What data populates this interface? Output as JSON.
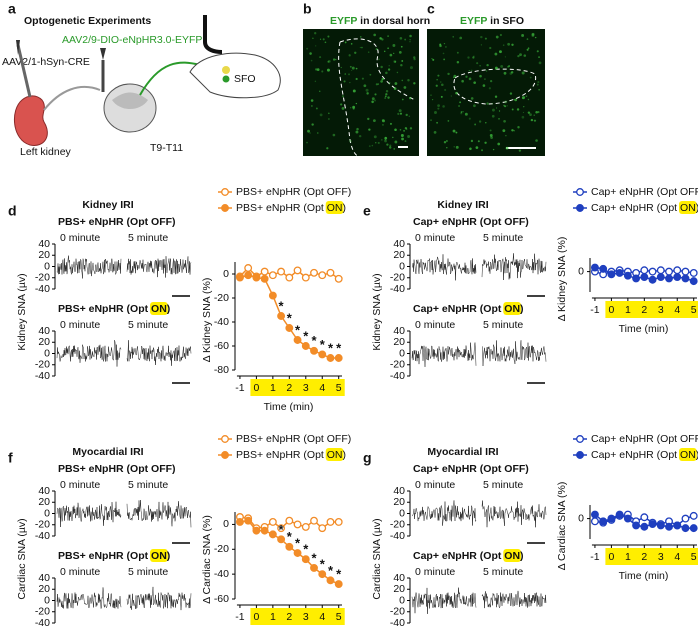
{
  "panel_a": {
    "label": "a",
    "title": "Optogenetic Experiments",
    "virus_spinal": "AAV2/9-DIO-eNpHR3.0-EYFP",
    "virus_kidney": "AAV2/1-hSyn-CRE",
    "kidney": "Left kidney",
    "segment": "T9-T11",
    "brain_region": "SFO"
  },
  "panel_b": {
    "label": "b",
    "title_highlight": "EYFP",
    "title": "in dorsal horn"
  },
  "panel_c": {
    "label": "c",
    "title_highlight": "EYFP",
    "title": "in SFO"
  },
  "chart_data": [
    {
      "type": "line",
      "panel": "d",
      "header": "Kidney IRI",
      "highlight": "ON",
      "trace_titles": [
        "PBS+ eNpHR (Opt OFF)",
        "PBS+ eNpHR (Opt ON)"
      ],
      "trace_times": [
        "0 minute",
        "5 minute"
      ],
      "trace_ylabel": "Kidney SNA (µv)",
      "trace_yticks": [
        40,
        20,
        0,
        -20,
        -40
      ],
      "ylabel": "Δ Kidney SNA (%)",
      "xlabel": "Time (min)",
      "x": [
        -1,
        -0.5,
        0,
        0.5,
        1,
        1.5,
        2,
        2.5,
        3,
        3.5,
        4,
        4.5,
        5
      ],
      "xlim": [
        -1.3,
        5.2
      ],
      "xticks": [
        -1,
        0,
        1,
        2,
        3,
        4,
        5
      ],
      "ylim": [
        -80,
        10
      ],
      "yticks": [
        0,
        -20,
        -40,
        -60,
        -80
      ],
      "light_on": [
        0,
        5
      ],
      "series": [
        {
          "name": "PBS+ eNpHR (Opt OFF)",
          "color": "#f28c28",
          "filled": false,
          "values": [
            -2,
            5,
            -2,
            2,
            -1,
            2,
            -3,
            3,
            -3,
            1,
            -1,
            1,
            -4
          ]
        },
        {
          "name": "PBS+ eNpHR (Opt ON)",
          "color": "#f28c28",
          "filled": true,
          "values": [
            -3,
            -1,
            -3,
            -4,
            -18,
            -35,
            -45,
            -55,
            -60,
            -64,
            -67,
            -70,
            -70
          ]
        }
      ],
      "annotations": [
        {
          "text": "*",
          "x": 1.5
        },
        {
          "text": "*",
          "x": 2
        },
        {
          "text": "*",
          "x": 2.5
        },
        {
          "text": "*",
          "x": 3
        },
        {
          "text": "*",
          "x": 3.5
        },
        {
          "text": "*",
          "x": 4
        },
        {
          "text": "*",
          "x": 4.5
        },
        {
          "text": "*",
          "x": 5
        }
      ]
    },
    {
      "type": "line",
      "panel": "e",
      "header": "Kidney IRI",
      "highlight": "ON",
      "trace_titles": [
        "Cap+ eNpHR (Opt OFF)",
        "Cap+ eNpHR (Opt ON)"
      ],
      "trace_times": [
        "0 minute",
        "5 minute"
      ],
      "trace_ylabel": "Kidney SNA (µv)",
      "trace_yticks": [
        40,
        20,
        0,
        -20,
        -40
      ],
      "ylabel": "Δ Kidney SNA (%)",
      "xlabel": "Time (min)",
      "x": [
        -1,
        -0.5,
        0,
        0.5,
        1,
        1.5,
        2,
        2.5,
        3,
        3.5,
        4,
        4.5,
        5
      ],
      "xlim": [
        -1.3,
        5.2
      ],
      "xticks": [
        -1,
        0,
        1,
        2,
        3,
        4,
        5
      ],
      "ylim": [
        -15,
        10
      ],
      "yticks": [
        0
      ],
      "light_on": [
        0,
        5
      ],
      "series": [
        {
          "name": "Cap+ eNpHR (Opt OFF)",
          "color": "#1f3fbf",
          "filled": false,
          "values": [
            0,
            -2,
            0,
            1,
            0,
            -1,
            1,
            0,
            1,
            0,
            1,
            0,
            -1
          ]
        },
        {
          "name": "Cap+ eNpHR (Opt ON)",
          "color": "#1f3fbf",
          "filled": true,
          "values": [
            3,
            2,
            -2,
            -1,
            -3,
            -5,
            -4,
            -6,
            -4,
            -5,
            -4,
            -5,
            -7
          ]
        }
      ],
      "annotations": []
    },
    {
      "type": "line",
      "panel": "f",
      "header": "Myocardial IRI",
      "highlight": "ON",
      "trace_titles": [
        "PBS+ eNpHR (Opt OFF)",
        "PBS+ eNpHR (Opt ON)"
      ],
      "trace_times": [
        "0 minute",
        "5 minute"
      ],
      "trace_ylabel": "Cardiac SNA (µv)",
      "trace_yticks": [
        40,
        20,
        0,
        -20,
        -40
      ],
      "ylabel": "Δ Cardiac SNA (%)",
      "xlabel": "Time (min)",
      "x": [
        -1,
        -0.5,
        0,
        0.5,
        1,
        1.5,
        2,
        2.5,
        3,
        3.5,
        4,
        4.5,
        5
      ],
      "xlim": [
        -1.3,
        5.2
      ],
      "xticks": [
        -1,
        0,
        1,
        2,
        3,
        4,
        5
      ],
      "ylim": [
        -60,
        10
      ],
      "yticks": [
        0,
        -20,
        -40,
        -60
      ],
      "light_on": [
        0,
        5
      ],
      "series": [
        {
          "name": "PBS+ eNpHR (Opt OFF)",
          "color": "#f28c28",
          "filled": false,
          "values": [
            6,
            5,
            -3,
            -2,
            2,
            -3,
            3,
            0,
            -2,
            3,
            -3,
            2,
            2
          ]
        },
        {
          "name": "PBS+ eNpHR (Opt ON)",
          "color": "#f28c28",
          "filled": true,
          "values": [
            2,
            3,
            -5,
            -5,
            -8,
            -12,
            -18,
            -23,
            -28,
            -35,
            -40,
            -45,
            -48
          ]
        }
      ],
      "annotations": [
        {
          "text": "*",
          "x": 1.5
        },
        {
          "text": "*",
          "x": 2
        },
        {
          "text": "*",
          "x": 2.5
        },
        {
          "text": "*",
          "x": 3
        },
        {
          "text": "*",
          "x": 3.5
        },
        {
          "text": "*",
          "x": 4
        },
        {
          "text": "*",
          "x": 4.5
        },
        {
          "text": "*",
          "x": 5
        }
      ]
    },
    {
      "type": "line",
      "panel": "g",
      "header": "Myocardial IRI",
      "highlight": "ON",
      "trace_titles": [
        "Cap+ eNpHR (Opt OFF)",
        "Cap+ eNpHR (Opt ON)"
      ],
      "trace_times": [
        "0 minute",
        "5 minute"
      ],
      "trace_ylabel": "Cardiac SNA (µv)",
      "trace_yticks": [
        40,
        20,
        0,
        -20,
        -40
      ],
      "ylabel": "Δ Cardiac SNA (%)",
      "xlabel": "Time (min)",
      "x": [
        -1,
        -0.5,
        0,
        0.5,
        1,
        1.5,
        2,
        2.5,
        3,
        3.5,
        4,
        4.5,
        5
      ],
      "xlim": [
        -1.3,
        5.2
      ],
      "xticks": [
        -1,
        0,
        1,
        2,
        3,
        4,
        5
      ],
      "ylim": [
        -15,
        10
      ],
      "yticks": [
        0
      ],
      "light_on": [
        0,
        5
      ],
      "series": [
        {
          "name": "Cap+ eNpHR (Opt OFF)",
          "color": "#1f3fbf",
          "filled": false,
          "values": [
            -2,
            -3,
            -1,
            2,
            3,
            -2,
            1,
            -3,
            -4,
            -2,
            -5,
            0,
            2
          ]
        },
        {
          "name": "Cap+ eNpHR (Opt ON)",
          "color": "#1f3fbf",
          "filled": true,
          "values": [
            3,
            -2,
            0,
            3,
            0,
            -5,
            -6,
            -4,
            -5,
            -6,
            -5,
            -7,
            -7
          ]
        }
      ],
      "annotations": []
    }
  ]
}
